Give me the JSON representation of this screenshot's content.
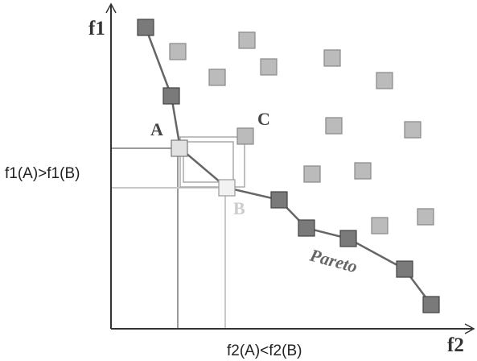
{
  "axes": {
    "y_label": "f1",
    "x_label": "f2"
  },
  "annotations": {
    "f1_comparison": "f1(A)>f1(B)",
    "f2_comparison": "f2(A)<f2(B)",
    "point_a": "A",
    "point_b": "B",
    "point_c": "C",
    "front_label": "Pareto"
  },
  "colors": {
    "dominated": "#bbbbbb",
    "pareto": "#7a7a7a",
    "highlight": "#e6e6e6",
    "front_line": "#666666",
    "axis": "#333333",
    "guide_a": "#9a9a9a",
    "guide_b": "#c8c8c8"
  }
}
